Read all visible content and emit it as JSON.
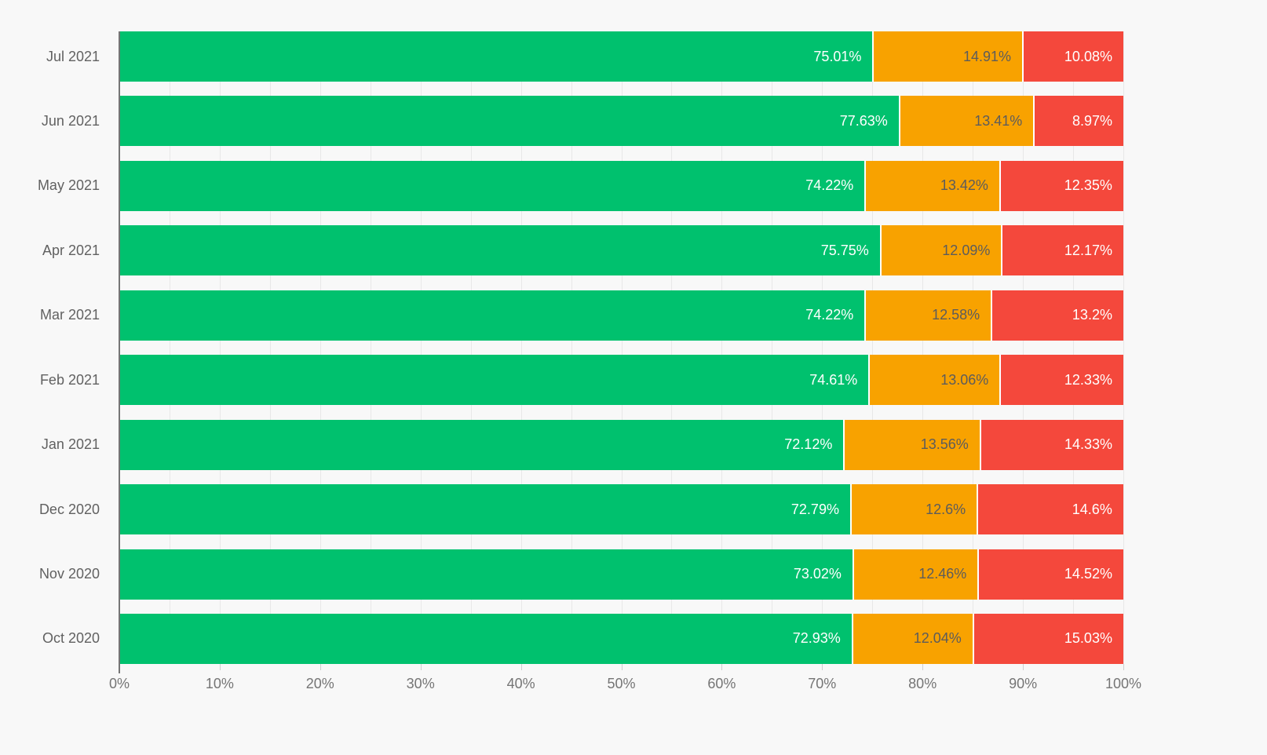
{
  "chart_data": {
    "type": "bar",
    "orientation": "horizontal",
    "stacked": true,
    "title": "",
    "xlabel": "",
    "ylabel": "",
    "xlim": [
      0,
      100
    ],
    "grid": true,
    "value_suffix": "%",
    "categories": [
      "Jul 2021",
      "Jun 2021",
      "May 2021",
      "Apr 2021",
      "Mar 2021",
      "Feb 2021",
      "Jan 2021",
      "Dec 2020",
      "Nov 2020",
      "Oct 2020"
    ],
    "series": [
      {
        "name": "green",
        "color": "#00c16e",
        "label_color": "#ffffff",
        "values": [
          75.01,
          77.63,
          74.22,
          75.75,
          74.22,
          74.61,
          72.12,
          72.79,
          73.02,
          72.93
        ]
      },
      {
        "name": "orange",
        "color": "#f8a200",
        "label_color": "#5c5c5c",
        "values": [
          14.91,
          13.41,
          13.42,
          12.09,
          12.58,
          13.06,
          13.56,
          12.6,
          12.46,
          12.04
        ]
      },
      {
        "name": "red",
        "color": "#f4483c",
        "label_color": "#ffffff",
        "values": [
          10.08,
          8.97,
          12.35,
          12.17,
          13.2,
          12.33,
          14.33,
          14.6,
          14.52,
          15.03
        ]
      }
    ],
    "x_ticks": [
      "0%",
      "10%",
      "20%",
      "30%",
      "40%",
      "50%",
      "60%",
      "70%",
      "80%",
      "90%",
      "100%"
    ],
    "x_tick_positions": [
      0,
      10,
      20,
      30,
      40,
      50,
      60,
      70,
      80,
      90,
      100
    ],
    "gridline_step": 5,
    "colors": {
      "background": "#f8f8f8",
      "gridline": "#e8e8e8",
      "axis_line": "#757575",
      "category_label": "#616161",
      "tick_label": "#757575"
    }
  }
}
